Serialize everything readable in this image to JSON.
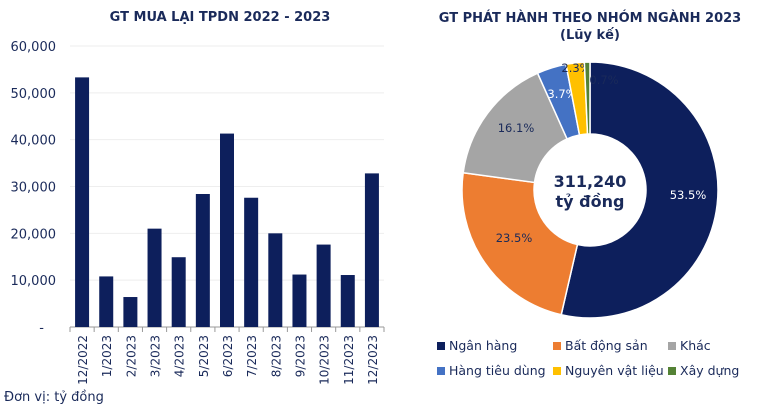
{
  "chart_data": [
    {
      "type": "bar",
      "title": "GT MUA LẠI TPDN 2022 - 2023",
      "ylim": [
        0,
        60000
      ],
      "yticks": [
        "-",
        "10,000",
        "20,000",
        "30,000",
        "40,000",
        "50,000",
        "60,000"
      ],
      "categories": [
        "12/2022",
        "1/2023",
        "2/2023",
        "3/2023",
        "4/2023",
        "5/2023",
        "6/2023",
        "7/2023",
        "8/2023",
        "9/2023",
        "10/2023",
        "11/2023",
        "12/2023"
      ],
      "values": [
        53300,
        10800,
        6400,
        21000,
        14900,
        28400,
        41300,
        27600,
        20000,
        11200,
        17600,
        11100,
        32800
      ],
      "color": "#0d1f5c",
      "grid": true
    },
    {
      "type": "pie",
      "title": "GT PHÁT HÀNH THEO NHÓM NGÀNH 2023 (Lũy kế)",
      "donut": true,
      "center_label": [
        "311,240",
        "tỷ đồng"
      ],
      "slices": [
        {
          "name": "Ngân hàng",
          "value": 53.5,
          "label": "53.5%",
          "color": "#0d1f5c"
        },
        {
          "name": "Bất động sản",
          "value": 23.5,
          "label": "23.5%",
          "color": "#ed7d31"
        },
        {
          "name": "Khác",
          "value": 16.1,
          "label": "16.1%",
          "color": "#a5a5a5"
        },
        {
          "name": "Hàng tiêu dùng",
          "value": 3.7,
          "label": "3.7%",
          "color": "#4472c4"
        },
        {
          "name": "Nguyên vật liệu",
          "value": 2.3,
          "label": "2.3%",
          "color": "#ffc000"
        },
        {
          "name": "Xây dựng",
          "value": 0.7,
          "label": "0.7%",
          "color": "#548235"
        }
      ]
    }
  ],
  "unit_note": "Đơn vị: tỷ đồng"
}
